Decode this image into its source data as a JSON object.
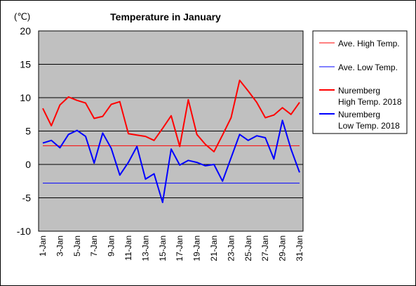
{
  "chart_data": {
    "type": "line",
    "title": "Temperature in January",
    "ylabel": "(℃)",
    "xlabel": "",
    "ylim": [
      -10,
      20
    ],
    "yticks": [
      -10,
      -5,
      0,
      5,
      10,
      15,
      20
    ],
    "grid": true,
    "legend_position": "right",
    "x": [
      "1-Jan",
      "2-Jan",
      "3-Jan",
      "4-Jan",
      "5-Jan",
      "6-Jan",
      "7-Jan",
      "8-Jan",
      "9-Jan",
      "10-Jan",
      "11-Jan",
      "12-Jan",
      "13-Jan",
      "14-Jan",
      "15-Jan",
      "16-Jan",
      "17-Jan",
      "18-Jan",
      "19-Jan",
      "20-Jan",
      "21-Jan",
      "22-Jan",
      "23-Jan",
      "24-Jan",
      "25-Jan",
      "26-Jan",
      "27-Jan",
      "28-Jan",
      "29-Jan",
      "30-Jan",
      "31-Jan"
    ],
    "xtick_labels": [
      "1-Jan",
      "3-Jan",
      "5-Jan",
      "7-Jan",
      "9-Jan",
      "11-Jan",
      "13-Jan",
      "15-Jan",
      "17-Jan",
      "19-Jan",
      "21-Jan",
      "23-Jan",
      "25-Jan",
      "27-Jan",
      "29-Jan",
      "31-Jan"
    ],
    "series": [
      {
        "name": "Ave. High Temp.",
        "color": "#ff0000",
        "width": 1,
        "values": [
          2.8,
          2.8,
          2.8,
          2.8,
          2.8,
          2.8,
          2.8,
          2.8,
          2.8,
          2.8,
          2.8,
          2.8,
          2.8,
          2.8,
          2.8,
          2.8,
          2.8,
          2.8,
          2.8,
          2.8,
          2.8,
          2.8,
          2.8,
          2.8,
          2.8,
          2.8,
          2.8,
          2.8,
          2.8,
          2.8,
          2.8
        ]
      },
      {
        "name": "Ave. Low Temp.",
        "color": "#0000ff",
        "width": 1,
        "values": [
          -2.8,
          -2.8,
          -2.8,
          -2.8,
          -2.8,
          -2.8,
          -2.8,
          -2.8,
          -2.8,
          -2.8,
          -2.8,
          -2.8,
          -2.8,
          -2.8,
          -2.8,
          -2.8,
          -2.8,
          -2.8,
          -2.8,
          -2.8,
          -2.8,
          -2.8,
          -2.8,
          -2.8,
          -2.8,
          -2.8,
          -2.8,
          -2.8,
          -2.8,
          -2.8,
          -2.8
        ]
      },
      {
        "name": "Nuremberg High Temp. 2018",
        "legend_lines": [
          "Nuremberg",
          "High Temp. 2018"
        ],
        "color": "#ff0000",
        "width": 2,
        "values": [
          8.4,
          5.8,
          8.9,
          10.1,
          9.6,
          9.2,
          6.9,
          7.2,
          9.0,
          9.4,
          4.6,
          4.4,
          4.2,
          3.6,
          5.4,
          7.3,
          2.7,
          9.7,
          4.5,
          3.0,
          1.9,
          4.4,
          7.0,
          12.6,
          11.0,
          9.3,
          7.0,
          7.4,
          8.5,
          7.5,
          9.3
        ]
      },
      {
        "name": "Nuremberg Low Temp. 2018",
        "legend_lines": [
          "Nuremberg",
          "Low Temp. 2018"
        ],
        "color": "#0000ff",
        "width": 2,
        "values": [
          3.2,
          3.6,
          2.5,
          4.5,
          5.1,
          4.2,
          0.2,
          4.7,
          2.4,
          -1.6,
          0.3,
          2.7,
          -2.2,
          -1.4,
          -5.7,
          2.3,
          -0.1,
          0.6,
          0.3,
          -0.2,
          0.0,
          -2.5,
          1.0,
          4.5,
          3.6,
          4.3,
          4.0,
          0.8,
          6.6,
          2.3,
          -1.2
        ]
      }
    ]
  },
  "colors": {
    "plot_background": "#c0c0c0",
    "grid": "#000000"
  }
}
